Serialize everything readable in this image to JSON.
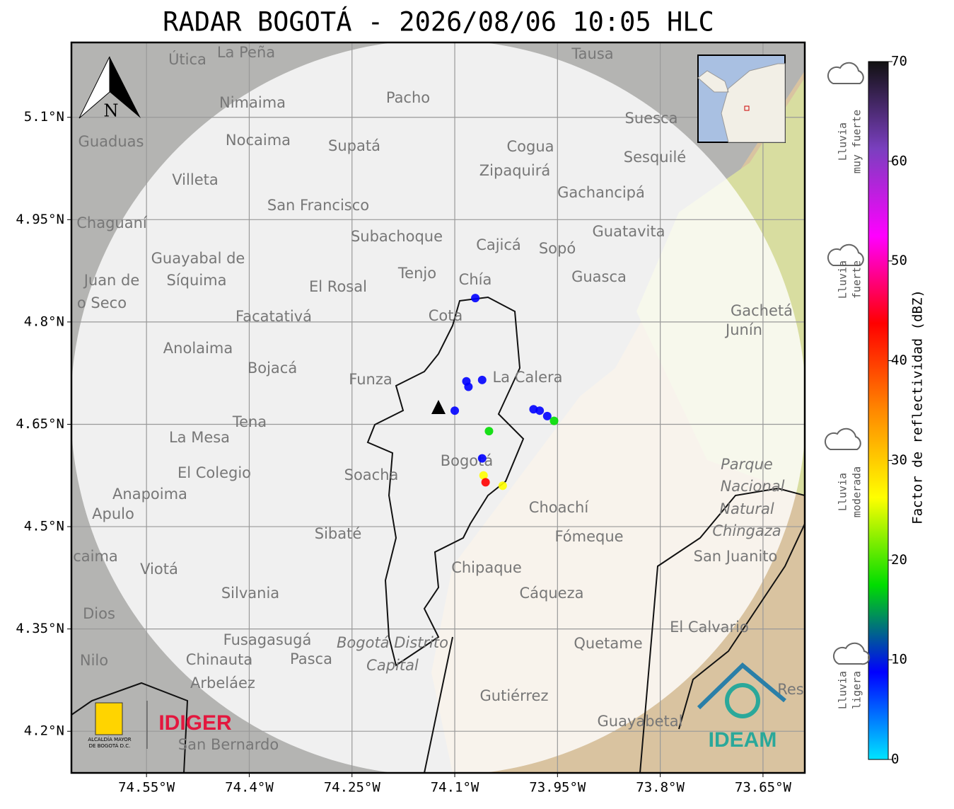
{
  "title": "RADAR BOGOTÁ - 2026/08/06 10:05 HLC",
  "map": {
    "xlim": [
      -74.6596,
      -73.589
    ],
    "ylim": [
      4.139,
      5.2097
    ],
    "xticks": [
      {
        "value": -74.55,
        "label": "74.55°W"
      },
      {
        "value": -74.4,
        "label": "74.4°W"
      },
      {
        "value": -74.25,
        "label": "74.25°W"
      },
      {
        "value": -74.1,
        "label": "74.1°W"
      },
      {
        "value": -73.95,
        "label": "73.95°W"
      },
      {
        "value": -73.8,
        "label": "73.8°W"
      },
      {
        "value": -73.65,
        "label": "73.65°W"
      }
    ],
    "yticks": [
      {
        "value": 5.1,
        "label": "5.1°N"
      },
      {
        "value": 4.95,
        "label": "4.95°N"
      },
      {
        "value": 4.8,
        "label": "4.8°N"
      },
      {
        "value": 4.65,
        "label": "4.65°N"
      },
      {
        "value": 4.5,
        "label": "4.5°N"
      },
      {
        "value": 4.35,
        "label": "4.35°N"
      },
      {
        "value": 4.2,
        "label": "4.2°N"
      }
    ],
    "grid": true,
    "places": [
      "La Peña",
      "Útica",
      "Tausa",
      "Pacho",
      "Nimaima",
      "Guaduas",
      "Nocaima",
      "Supatá",
      "Cogua",
      "Suesca",
      "Sesquilé",
      "Villeta",
      "Zipaquirá",
      "Gachancipá",
      "San Francisco",
      "Chaguaní",
      "Subachoque",
      "Guatavita",
      "Cajicá",
      "Sopó",
      "Guayabal de",
      "Síquima",
      "Juan de",
      "Tenjo",
      "Chía",
      "Guasca",
      "El Rosal",
      "o Seco",
      "Facatativá",
      "Cota",
      "Gachetá",
      "Junín",
      "Anolaima",
      "Bojacá",
      "Funza",
      "La Calera",
      "Tena",
      "La Mesa",
      "Bogotá",
      "Parque",
      "Nacional",
      "Natural",
      "Chingaza",
      "El Colegio",
      "Soacha",
      "Anapoima",
      "Apulo",
      "Choachí",
      "Sibaté",
      "Fómeque",
      "San Juanito",
      "caima",
      "Viotá",
      "Chipaque",
      "Silvania",
      "Cáqueza",
      "Dios",
      "El Calvario",
      "Fusagasugá",
      "Bogotá Distrito",
      "Quetame",
      "Chinauta",
      "Pasca",
      "Nilo",
      "Capital",
      "Arbeláez",
      "Gutiérrez",
      "Guayabetal",
      "San Bernardo",
      "Res"
    ],
    "north": "N",
    "echoes": [
      {
        "lon": -74.083,
        "lat": 4.713,
        "dbz": 5
      },
      {
        "lon": -74.08,
        "lat": 4.705,
        "dbz": 8
      },
      {
        "lon": -74.06,
        "lat": 4.715,
        "dbz": 6
      },
      {
        "lon": -73.976,
        "lat": 4.67,
        "dbz": 10
      },
      {
        "lon": -73.965,
        "lat": 4.662,
        "dbz": 8
      },
      {
        "lon": -73.955,
        "lat": 4.655,
        "dbz": 15
      },
      {
        "lon": -73.985,
        "lat": 4.672,
        "dbz": 12
      },
      {
        "lon": -74.05,
        "lat": 4.64,
        "dbz": 20
      },
      {
        "lon": -74.06,
        "lat": 4.6,
        "dbz": 9
      },
      {
        "lon": -74.058,
        "lat": 4.575,
        "dbz": 22
      },
      {
        "lon": -74.055,
        "lat": 4.565,
        "dbz": 40
      },
      {
        "lon": -74.03,
        "lat": 4.56,
        "dbz": 28
      },
      {
        "lon": -74.1,
        "lat": 4.67,
        "dbz": 12
      },
      {
        "lon": -74.07,
        "lat": 4.835,
        "dbz": 8
      }
    ]
  },
  "logos": {
    "idiger": "IDIGER",
    "alcaldia": [
      "ALCALDÍA MAYOR",
      "DE BOGOTÁ D.C."
    ],
    "ideam": "IDEAM"
  },
  "colorbar": {
    "label": "Factor de reflectividad (dBZ)",
    "lim": [
      0,
      70
    ],
    "ticks": [
      0,
      10,
      20,
      30,
      40,
      50,
      60,
      70
    ],
    "colors": [
      "#00e5ff",
      "#0000ff",
      "#00dd00",
      "#ffff00",
      "#ff8800",
      "#ff0000",
      "#ff00ff",
      "#7a3fbf",
      "#111111"
    ],
    "categories": [
      [
        "Lluvia",
        "muy fuerte"
      ],
      [
        "Lluvia",
        "fuerte"
      ],
      [
        "Lluvia",
        "moderada"
      ],
      [
        "Lluvia",
        "ligera"
      ]
    ]
  }
}
